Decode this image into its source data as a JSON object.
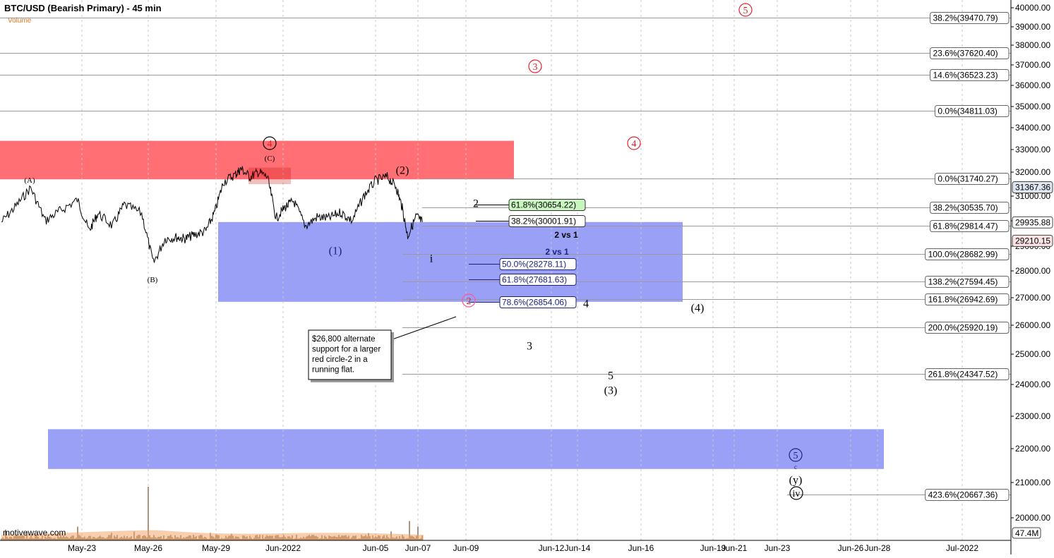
{
  "title": "BTC/USD (Bearish Primary) - 45 min",
  "volume_label": "Volume",
  "watermark": "motivewave.com",
  "volume_readout": "47.4M",
  "colors": {
    "red_zone": "#ff6f73",
    "blue_zone": "#9aa0f5",
    "price_line": "#000000",
    "red_label": "#e8202a",
    "blue_label": "#1a237e",
    "green_box": "#c9f5c0",
    "last_price_box": "#fde4e4",
    "prev_price_box": "#dde6ee",
    "grid": "#c8c8c8",
    "volume_bars": "#5a2a00",
    "volume_ma": "#f0a060"
  },
  "chart_data": {
    "type": "line",
    "symbol": "BTC/USD",
    "timeframe": "45 min",
    "x_axis": {
      "type": "date",
      "tick_labels": [
        "May-23",
        "May-26",
        "May-29",
        "Jun-2022",
        "Jun-05",
        "Jun-07",
        "Jun-09",
        "Jun-12",
        "Jun-14",
        "Jun-16",
        "Jun-19",
        "Jun-21",
        "Jun-23",
        "Jun-26",
        "Jun-28",
        "Jul-2022"
      ]
    },
    "y_axis": {
      "range": [
        19400,
        40400
      ],
      "tick_labels": [
        "40000.00",
        "39000.00",
        "38000.00",
        "37000.00",
        "36000.00",
        "35000.00",
        "34000.00",
        "33000.00",
        "32000.00",
        "31000.00",
        "30000.00",
        "29000.00",
        "28000.00",
        "27000.00",
        "26000.00",
        "25000.00",
        "24000.00",
        "23000.00",
        "22000.00",
        "21000.00",
        "20000.00"
      ],
      "tick_values": [
        40000,
        39000,
        38000,
        37000,
        36000,
        35000,
        34000,
        33000,
        32000,
        31000,
        30000,
        29000,
        28000,
        27000,
        26000,
        25000,
        24000,
        23000,
        22000,
        21000,
        20000
      ]
    },
    "price_series": {
      "name": "",
      "x": [
        0.0,
        0.5,
        1.0,
        1.5,
        2.0,
        2.6,
        3.0,
        3.3,
        3.8,
        4.2,
        4.8,
        5.2,
        5.6,
        6.0,
        6.3,
        6.6,
        7.0,
        7.3,
        7.6,
        8.0,
        8.2,
        8.5,
        8.8,
        9.1,
        9.4,
        9.7,
        10.0,
        10.4,
        10.8,
        11.2,
        11.6,
        12.0,
        12.4,
        12.8,
        13.2,
        13.5,
        13.7,
        13.9,
        14.2,
        14.4
      ],
      "y": [
        29950,
        30600,
        31350,
        30000,
        30400,
        30850,
        29600,
        30300,
        29800,
        30650,
        30300,
        28300,
        29300,
        29350,
        29300,
        29450,
        29600,
        30350,
        31600,
        31900,
        32150,
        31800,
        32000,
        31800,
        30100,
        30550,
        30800,
        29800,
        30150,
        30100,
        30350,
        30000,
        31000,
        31650,
        31800,
        31400,
        30600,
        29400,
        30200,
        29950
      ]
    },
    "zones": [
      {
        "color": "red",
        "y_from": 31700,
        "y_to": 33400
      },
      {
        "color": "blue",
        "y_from": 26850,
        "y_to": 29950
      },
      {
        "color": "blue",
        "y_from": 21400,
        "y_to": 22600
      }
    ],
    "fib_levels": [
      {
        "label": "38.2%(39470.79)",
        "value": 39470.79
      },
      {
        "label": "23.6%(37620.40)",
        "value": 37620.4
      },
      {
        "label": "14.6%(36523.23)",
        "value": 36523.23
      },
      {
        "label": "0.0%(34811.03)",
        "value": 34811.03
      },
      {
        "label": "0.0%(31740.27)",
        "value": 31740.27
      },
      {
        "label": "38.2%(30535.70)",
        "value": 30535.7
      },
      {
        "label": "61.8%(29814.47)",
        "value": 29814.47
      },
      {
        "label": "100.0%(28682.99)",
        "value": 28682.99
      },
      {
        "label": "138.2%(27594.45)",
        "value": 27594.45
      },
      {
        "label": "161.8%(26942.69)",
        "value": 26942.69
      },
      {
        "label": "200.0%(25920.19)",
        "value": 25920.19
      },
      {
        "label": "261.8%(24347.52)",
        "value": 24347.52
      },
      {
        "label": "423.6%(20667.36)",
        "value": 20667.36
      }
    ],
    "retrace_boxes": [
      {
        "label": "61.8%(30654.22)",
        "value": 30654.22,
        "style": "green"
      },
      {
        "label": "38.2%(30001.91)",
        "value": 30001.91,
        "style": "plain"
      },
      {
        "label": "50.0%(28278.11)",
        "value": 28278.11,
        "style": "blue"
      },
      {
        "label": "61.8%(27681.63)",
        "value": 27681.63,
        "style": "blue"
      },
      {
        "label": "78.6%(26854.06)",
        "value": 26854.06,
        "style": "blue"
      }
    ],
    "price_tags": [
      {
        "label": "31367.36",
        "value": 31367.36,
        "style": "prev"
      },
      {
        "label": "29935.88",
        "value": 29935.88,
        "style": "plain"
      },
      {
        "label": "29210.15",
        "value": 29210.15,
        "style": "last"
      }
    ],
    "wave_labels": [
      {
        "text": "(A)",
        "style": "small"
      },
      {
        "text": "(B)",
        "style": "small"
      },
      {
        "text": "(C)",
        "style": "small"
      },
      {
        "text": "4",
        "style": "circle-red-black"
      },
      {
        "text": "(1)",
        "style": "blue"
      },
      {
        "text": "(2)",
        "style": "black"
      },
      {
        "text": "i",
        "style": "black"
      },
      {
        "text": "2",
        "style": "black"
      },
      {
        "text": "2 vs 1",
        "style": "bold-small"
      },
      {
        "text": "2 vs 1",
        "style": "bold-small-blue"
      },
      {
        "text": "2",
        "style": "circle-red"
      },
      {
        "text": "4",
        "style": "black"
      },
      {
        "text": "3",
        "style": "black"
      },
      {
        "text": "5",
        "style": "black"
      },
      {
        "text": "(3)",
        "style": "black"
      },
      {
        "text": "(4)",
        "style": "black"
      },
      {
        "text": "3",
        "style": "circle-red"
      },
      {
        "text": "4",
        "style": "circle-red"
      },
      {
        "text": "5",
        "style": "circle-red"
      },
      {
        "text": "5",
        "style": "circle-blue"
      },
      {
        "text": "c",
        "style": "tiny-blue"
      },
      {
        "text": "(y)",
        "style": "black"
      },
      {
        "text": "iv",
        "style": "circle-black"
      }
    ],
    "annotation": "$26,800 alternate support for a larger red circle-2 in a running flat.",
    "annotation_lines": [
      "$26,800 alternate",
      "support for a larger",
      "red circle-2 in a",
      "running flat."
    ]
  }
}
